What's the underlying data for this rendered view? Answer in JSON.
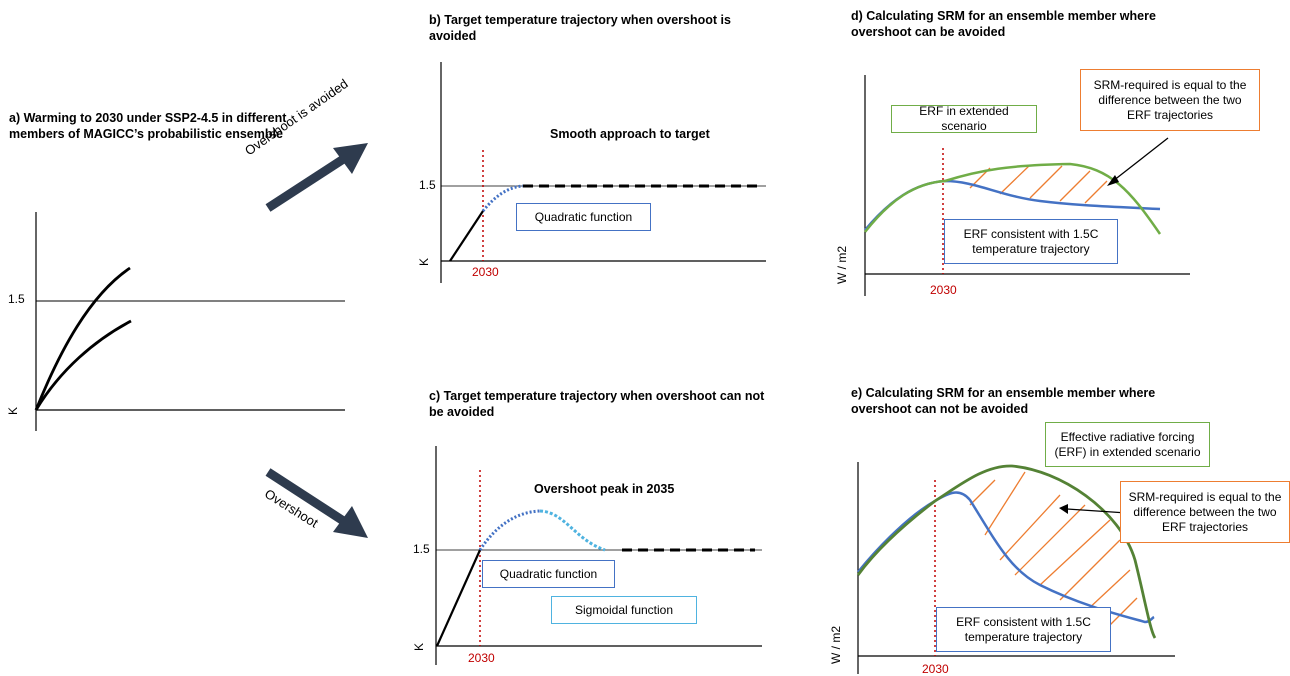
{
  "panels": {
    "a": {
      "title": "a) Warming to 2030 under SSP2-4.5 in different members of MAGICC’s probabilistic ensemble",
      "ytick": "1.5",
      "yunit": "K"
    },
    "b": {
      "title": "b) Target temperature trajectory when overshoot is avoided",
      "ytick": "1.5",
      "yunit": "K",
      "year": "2030",
      "note": "Smooth approach to target",
      "box": "Quadratic function"
    },
    "c": {
      "title": "c) Target temperature trajectory when overshoot can not be avoided",
      "ytick": "1.5",
      "yunit": "K",
      "year": "2030",
      "note": "Overshoot peak in 2035",
      "box1": "Quadratic function",
      "box2": "Sigmoidal function"
    },
    "d": {
      "title": "d) Calculating SRM for an ensemble member where overshoot can be avoided",
      "yunit": "W / m2",
      "year": "2030",
      "box_erf": "ERF in extended scenario",
      "box_srm": "SRM-required is equal to the difference between the two ERF trajectories",
      "box_target": "ERF consistent with 1.5C temperature trajectory"
    },
    "e": {
      "title": "e) Calculating SRM for an ensemble member where overshoot can not be avoided",
      "yunit": "W / m2",
      "year": "2030",
      "box_erf": "Effective radiative forcing (ERF) in extended scenario",
      "box_srm": "SRM-required is equal to the difference between the two ERF trajectories",
      "box_target": "ERF consistent with 1.5C temperature trajectory"
    }
  },
  "arrows": {
    "up": "Overshoot is avoided",
    "down": "Overshoot"
  },
  "colors": {
    "blue": "#4472c4",
    "green": "#70ad47",
    "orange": "#ed7d31",
    "red": "#c00000",
    "light_blue": "#4fb3e0",
    "arrow": "#2e3b4e"
  }
}
